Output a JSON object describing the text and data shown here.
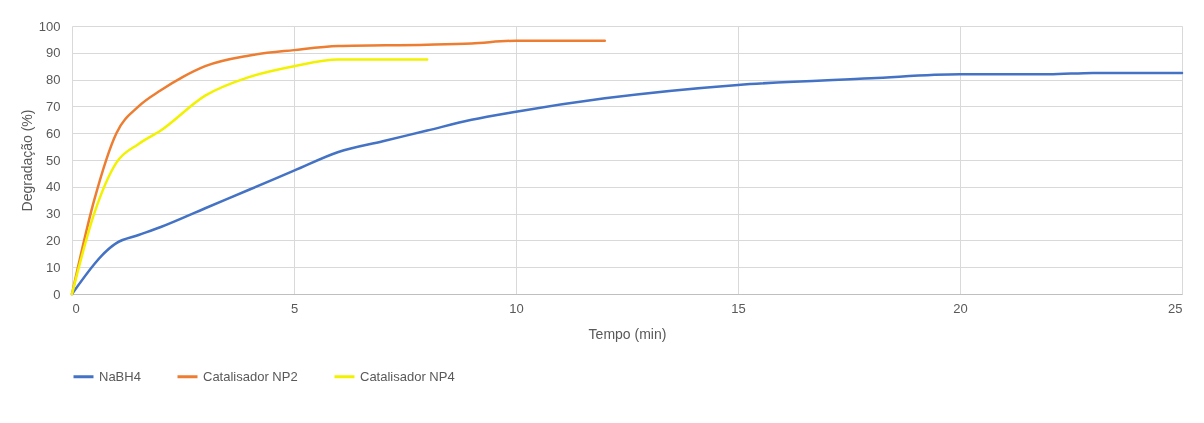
{
  "chart_data": {
    "type": "line",
    "xlabel": "Tempo (min)",
    "ylabel": "Degradação (%)",
    "xlim": [
      0,
      25
    ],
    "xticks": [
      0,
      5,
      10,
      15,
      20,
      25
    ],
    "ylim": [
      0,
      100
    ],
    "yticks": [
      0,
      10,
      20,
      30,
      40,
      50,
      60,
      70,
      80,
      90,
      100
    ],
    "grid": true,
    "legend": "bottom",
    "marker": "none",
    "line_style": "solid",
    "series": [
      {
        "name": "NaBH4",
        "color": "#4472c4",
        "x": [
          0,
          1,
          1.5,
          2,
          3,
          4,
          5,
          6,
          7,
          8,
          9,
          10,
          12,
          15,
          18,
          20,
          22,
          23,
          25
        ],
        "values": [
          0,
          19,
          22,
          25,
          32,
          39,
          46,
          53,
          57,
          61,
          65,
          68,
          73,
          78,
          80.5,
          82,
          82,
          82.5,
          82.5
        ]
      },
      {
        "name": "Catalisador NP2",
        "color": "#ed7d31",
        "x": [
          0,
          0.5,
          1,
          1.5,
          2,
          2.5,
          3,
          4,
          5,
          6,
          8,
          9,
          10,
          12
        ],
        "values": [
          0,
          35,
          60,
          70,
          76,
          81,
          85,
          89,
          91,
          92.5,
          93,
          93.5,
          94.5,
          94.5
        ]
      },
      {
        "name": "Catalisador NP4",
        "color": "#f2f200",
        "x": [
          0,
          0.5,
          1,
          1.5,
          2,
          3,
          4,
          5,
          6,
          7,
          8
        ],
        "values": [
          0,
          30,
          49,
          56,
          61,
          74,
          81,
          85,
          87.5,
          87.5,
          87.5
        ]
      }
    ]
  }
}
